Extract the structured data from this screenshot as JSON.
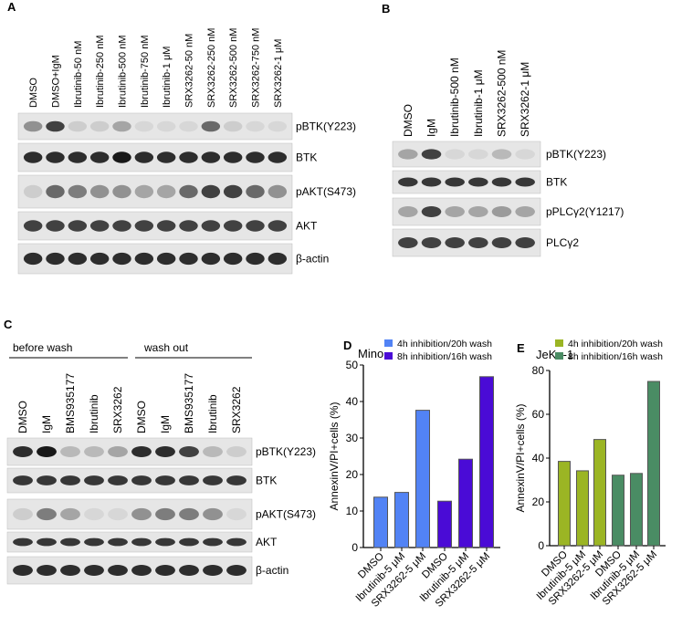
{
  "panels": {
    "A": "A",
    "B": "B",
    "C": "C",
    "D": "D",
    "E": "E"
  },
  "blotA": {
    "lanes": [
      "DMSO",
      "DMSO+IgM",
      "Ibrutinib-50 nM",
      "Ibrutinib-250 nM",
      "Ibrutinib-500 nM",
      "Ibrutinib-750 nM",
      "Ibrutinib-1 μM",
      "SRX3262-50 nM",
      "SRX3262-250 nM",
      "SRX3262-500 nM",
      "SRX3262-750 nM",
      "SRX3262-1 μM"
    ],
    "rows": [
      {
        "label": "pBTK(Y223)",
        "bands": [
          0.4,
          0.8,
          0.1,
          0.1,
          0.3,
          0.05,
          0.05,
          0.05,
          0.6,
          0.1,
          0.05,
          0.05
        ]
      },
      {
        "label": "BTK",
        "bands": [
          0.9,
          0.9,
          0.9,
          0.9,
          1,
          0.9,
          0.9,
          0.9,
          0.9,
          0.9,
          0.9,
          0.9
        ]
      },
      {
        "label": "pAKT(S473)",
        "bands": [
          0.1,
          0.6,
          0.5,
          0.4,
          0.4,
          0.3,
          0.3,
          0.6,
          0.8,
          0.8,
          0.6,
          0.4
        ]
      },
      {
        "label": "AKT",
        "bands": [
          0.8,
          0.8,
          0.8,
          0.8,
          0.8,
          0.8,
          0.8,
          0.8,
          0.8,
          0.8,
          0.8,
          0.8
        ]
      },
      {
        "label": "β-actin",
        "bands": [
          0.9,
          0.9,
          0.9,
          0.9,
          0.9,
          0.9,
          0.9,
          0.9,
          0.9,
          0.9,
          0.9,
          0.9
        ]
      }
    ]
  },
  "blotB": {
    "lanes": [
      "DMSO",
      "IgM",
      "Ibrutinib-500 nM",
      "Ibrutinib-1 μM",
      "SRX3262-500 nM",
      "SRX3262-1 μM"
    ],
    "rows": [
      {
        "label": "pBTK(Y223)",
        "bands": [
          0.3,
          0.8,
          0.05,
          0.05,
          0.2,
          0.05
        ]
      },
      {
        "label": "BTK",
        "bands": [
          0.85,
          0.85,
          0.85,
          0.85,
          0.85,
          0.85
        ]
      },
      {
        "label": "pPLCγ2(Y1217)",
        "bands": [
          0.3,
          0.8,
          0.3,
          0.3,
          0.35,
          0.3
        ]
      },
      {
        "label": "PLCγ2",
        "bands": [
          0.8,
          0.8,
          0.8,
          0.8,
          0.8,
          0.8
        ]
      }
    ]
  },
  "blotC": {
    "groups": [
      "before wash",
      "wash out"
    ],
    "lanes": [
      "DMSO",
      "IgM",
      "BMS935177",
      "Ibrutinib",
      "SRX3262",
      "DMSO",
      "IgM",
      "BMS935177",
      "Ibrutinib",
      "SRX3262"
    ],
    "rows": [
      {
        "label": "pBTK(Y223)",
        "bands": [
          0.9,
          1,
          0.2,
          0.2,
          0.3,
          0.9,
          0.9,
          0.8,
          0.2,
          0.1
        ]
      },
      {
        "label": "BTK",
        "bands": [
          0.85,
          0.85,
          0.85,
          0.85,
          0.85,
          0.85,
          0.85,
          0.85,
          0.85,
          0.85
        ]
      },
      {
        "label": "pAKT(S473)",
        "bands": [
          0.1,
          0.5,
          0.3,
          0.05,
          0.05,
          0.4,
          0.5,
          0.5,
          0.4,
          0.05
        ]
      },
      {
        "label": "AKT",
        "bands": [
          0.85,
          0.85,
          0.85,
          0.85,
          0.85,
          0.85,
          0.85,
          0.85,
          0.85,
          0.85
        ]
      },
      {
        "label": "β-actin",
        "bands": [
          0.9,
          0.9,
          0.9,
          0.9,
          0.9,
          0.9,
          0.9,
          0.9,
          0.9,
          0.9
        ]
      }
    ]
  },
  "chart_data": [
    {
      "type": "bar",
      "title": "Mino",
      "ylabel": "AnnexinV/PI+cells (%)",
      "ylim": [
        0,
        50
      ],
      "yticks": [
        0,
        10,
        20,
        30,
        40,
        50
      ],
      "categories": [
        "DMSO",
        "Ibrutinib-5 μM",
        "SRX3262-5 μM",
        "DMSO",
        "Ibrutinib-5 μM",
        "SRX3262-5 μM"
      ],
      "values": [
        13.8,
        15.1,
        37.6,
        12.7,
        24.2,
        46.8
      ],
      "series_index": [
        0,
        0,
        0,
        1,
        1,
        1
      ],
      "legend": [
        {
          "name": "4h inhibition/20h wash",
          "color": "#5283f5"
        },
        {
          "name": "8h inhibition/16h wash",
          "color": "#4a0bd6"
        }
      ],
      "legend_position": "top-right"
    },
    {
      "type": "bar",
      "title": "JeKo-1",
      "ylabel": "AnnexinV/PI+cells (%)",
      "ylim": [
        0,
        80
      ],
      "yticks": [
        0,
        20,
        40,
        60,
        80
      ],
      "categories": [
        "DMSO",
        "Ibrutinib-5 μM",
        "SRX3262-5 μM",
        "DMSO",
        "Ibrutinib-5 μM",
        "SRX3262-5 μM"
      ],
      "values": [
        38.5,
        34.2,
        48.5,
        32.2,
        33.0,
        75.0
      ],
      "series_index": [
        0,
        0,
        0,
        1,
        1,
        1
      ],
      "legend": [
        {
          "name": "4h inhibition/20h wash",
          "color": "#9bb524"
        },
        {
          "name": "8h inhibition/16h wash",
          "color": "#4a8c64"
        }
      ],
      "legend_position": "top-right"
    }
  ]
}
